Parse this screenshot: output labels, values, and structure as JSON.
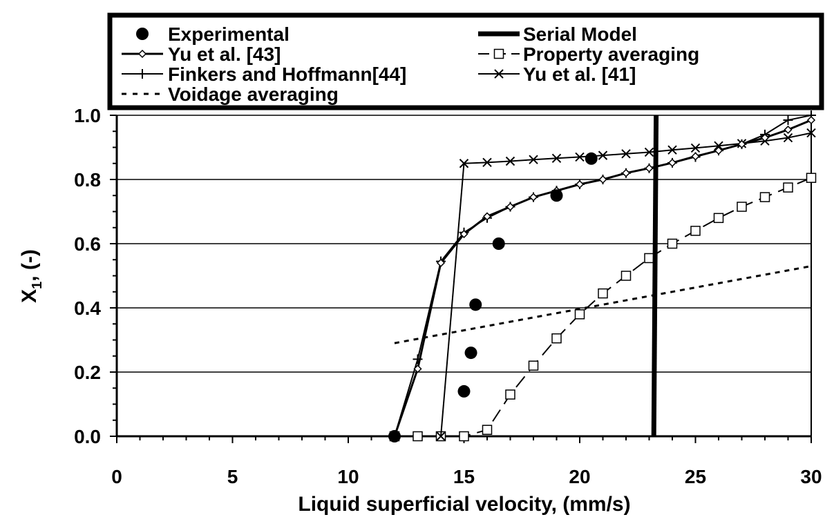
{
  "chart_data": {
    "type": "line",
    "xlabel": "Liquid superficial velocity, (mm/s)",
    "ylabel_main": "X",
    "ylabel_sub": "1",
    "ylabel_rest": ", (-)",
    "xlim": [
      0,
      30
    ],
    "ylim": [
      0,
      1.0
    ],
    "x_ticks": [
      "0",
      "5",
      "10",
      "15",
      "20",
      "25",
      "30"
    ],
    "y_ticks": [
      "0.0",
      "0.2",
      "0.4",
      "0.6",
      "0.8",
      "1.0"
    ],
    "grid": "horizontal",
    "legend_position": "top",
    "series": [
      {
        "name": "Experimental",
        "marker": "filled-circle",
        "line": "none",
        "x": [
          12,
          15,
          15.3,
          15.5,
          16.5,
          19,
          20.5
        ],
        "y": [
          0.0,
          0.14,
          0.26,
          0.41,
          0.6,
          0.75,
          0.865
        ]
      },
      {
        "name": "Serial Model",
        "marker": "none",
        "line": "thick",
        "x": [
          23.2,
          23.3
        ],
        "y": [
          0.0,
          1.0
        ]
      },
      {
        "name": "Yu et al. [43]",
        "marker": "diamond",
        "line": "solid",
        "x": [
          12,
          13,
          14,
          15,
          16,
          17,
          18,
          19,
          20,
          21,
          22,
          23,
          24,
          25,
          26,
          27,
          28,
          29,
          30
        ],
        "y": [
          0.0,
          0.21,
          0.54,
          0.63,
          0.685,
          0.715,
          0.745,
          0.765,
          0.785,
          0.8,
          0.82,
          0.835,
          0.852,
          0.872,
          0.89,
          0.91,
          0.93,
          0.955,
          0.985
        ]
      },
      {
        "name": "Property averaging",
        "marker": "open-square",
        "line": "long-dash",
        "x": [
          12,
          13,
          14,
          15,
          16,
          17,
          18,
          19,
          20,
          21,
          22,
          23,
          24,
          25,
          26,
          27,
          28,
          29,
          30
        ],
        "y": [
          0.0,
          0.0,
          0.0,
          0.0,
          0.02,
          0.13,
          0.22,
          0.305,
          0.38,
          0.445,
          0.5,
          0.555,
          0.6,
          0.64,
          0.68,
          0.715,
          0.745,
          0.775,
          0.805
        ]
      },
      {
        "name": "Finkers and Hoffmann[44]",
        "marker": "plus",
        "line": "solid",
        "x": [
          12,
          13,
          14,
          15,
          16,
          17,
          18,
          19,
          20,
          21,
          22,
          23,
          24,
          25,
          26,
          27,
          28,
          29,
          30
        ],
        "y": [
          0.0,
          0.24,
          0.545,
          0.635,
          0.68,
          0.715,
          0.745,
          0.765,
          0.785,
          0.8,
          0.82,
          0.835,
          0.852,
          0.87,
          0.89,
          0.91,
          0.94,
          0.985,
          1.0
        ]
      },
      {
        "name": "Yu et al. [41]",
        "marker": "x",
        "line": "solid",
        "x": [
          14,
          15,
          16,
          17,
          18,
          19,
          20,
          21,
          22,
          23,
          24,
          25,
          26,
          27,
          28,
          29,
          30
        ],
        "y": [
          0.0,
          0.85,
          0.853,
          0.857,
          0.862,
          0.866,
          0.87,
          0.875,
          0.88,
          0.885,
          0.892,
          0.898,
          0.905,
          0.912,
          0.92,
          0.93,
          0.945
        ]
      },
      {
        "name": "Voidage averaging",
        "marker": "none",
        "line": "short-dash",
        "x": [
          12,
          30
        ],
        "y": [
          0.29,
          0.53
        ]
      }
    ]
  }
}
